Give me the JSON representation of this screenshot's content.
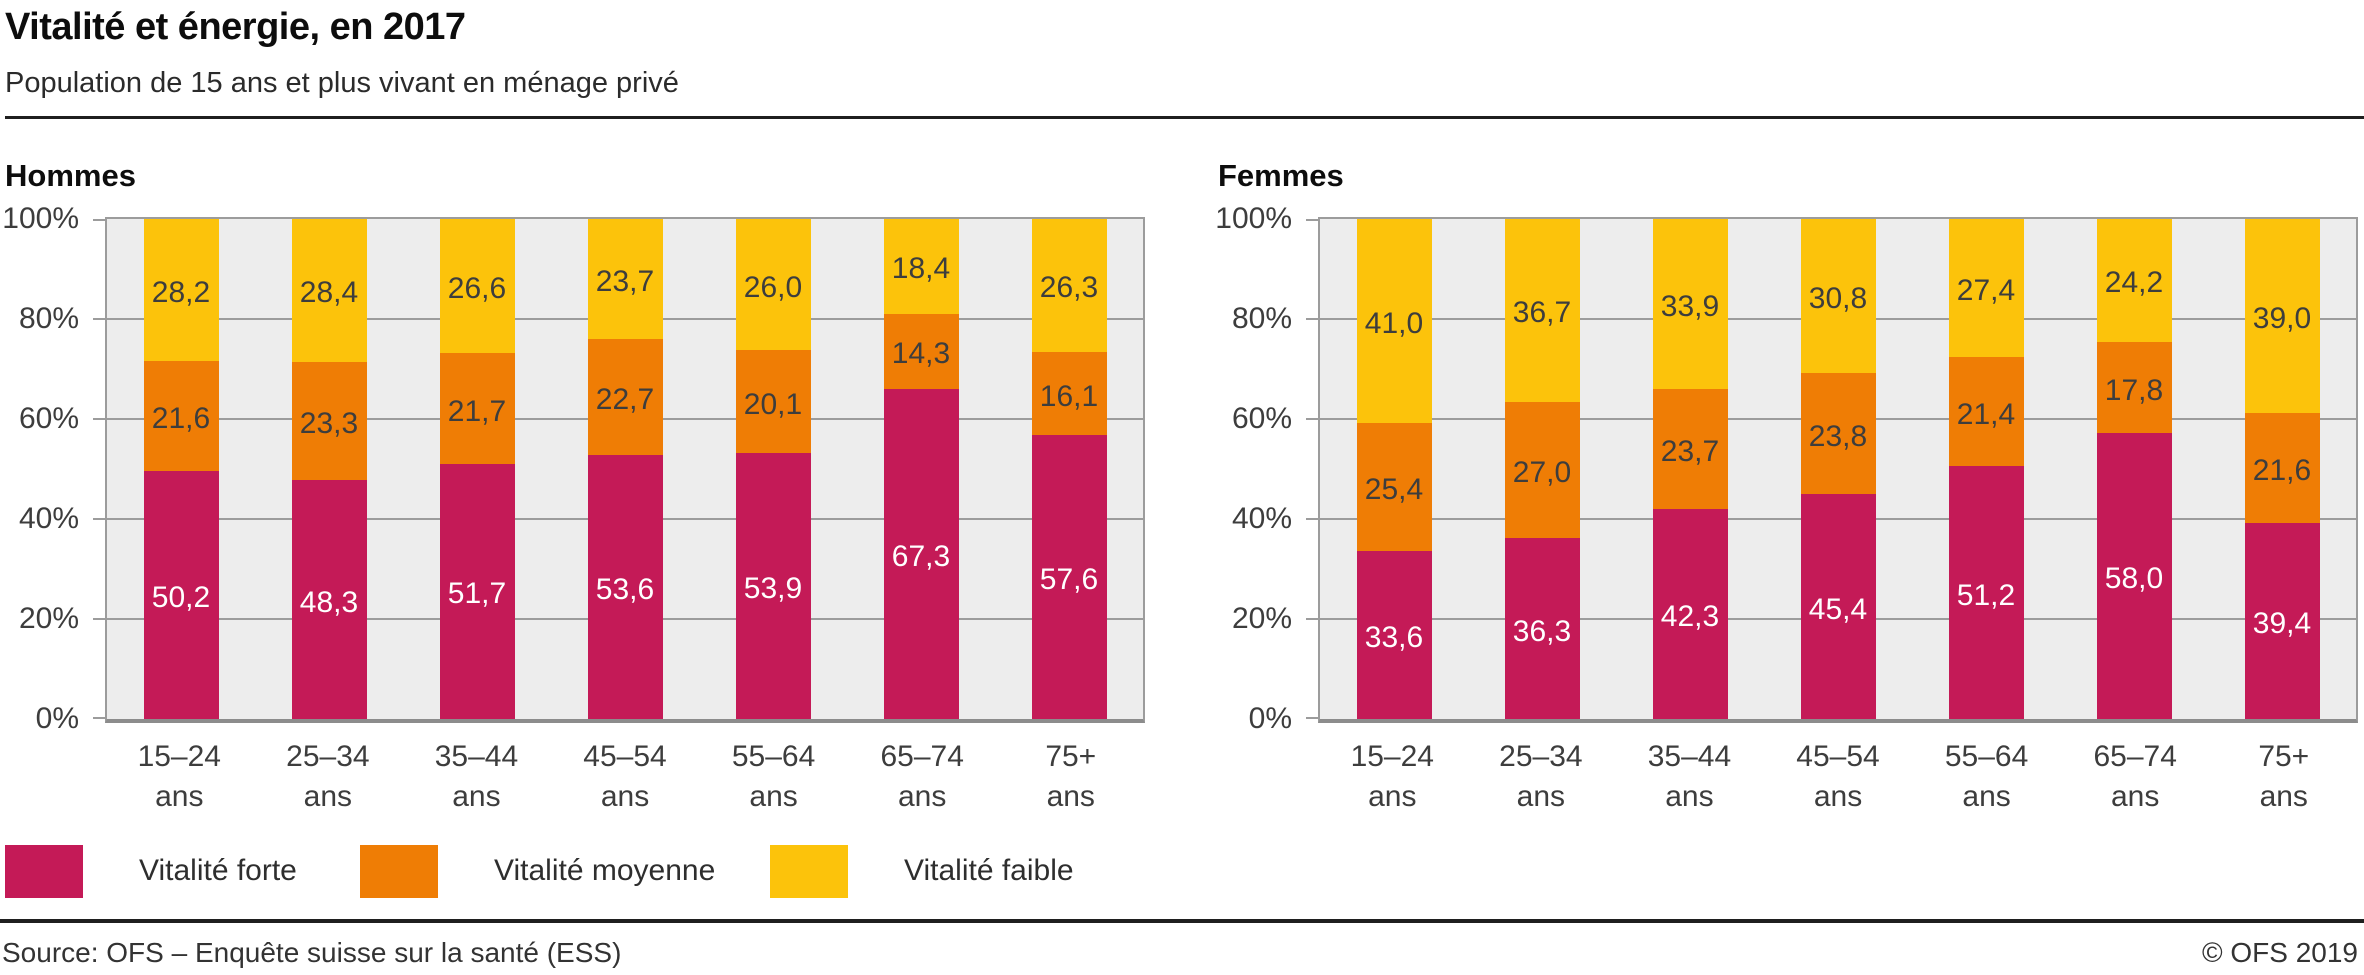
{
  "header": {
    "title": "Vitalité et énergie, en 2017",
    "subtitle": "Population de 15 ans et plus vivant en ménage privé"
  },
  "y_axis": {
    "tick_labels": [
      "100%",
      "80%",
      "60%",
      "40%",
      "20%",
      "0%"
    ]
  },
  "category_unit": "ans",
  "legend": {
    "items": [
      {
        "label": "Vitalité forte",
        "color": "#C41A57"
      },
      {
        "label": "Vitalité moyenne",
        "color": "#EF7D05"
      },
      {
        "label": "Vitalité faible",
        "color": "#FCC30B"
      }
    ]
  },
  "chart_data": [
    {
      "type": "bar",
      "stacked": true,
      "title": "Hommes",
      "ylim": [
        0,
        100
      ],
      "grid": true,
      "categories": [
        "15–24",
        "25–34",
        "35–44",
        "45–54",
        "55–64",
        "65–74",
        "75+"
      ],
      "series": [
        {
          "name": "Vitalité forte",
          "color": "#C41A57",
          "label_color": "#FFFFFF",
          "values": [
            50.2,
            48.3,
            51.7,
            53.6,
            53.9,
            67.3,
            57.6
          ]
        },
        {
          "name": "Vitalité moyenne",
          "color": "#EF7D05",
          "label_color": "#3D3D3D",
          "values": [
            21.6,
            23.3,
            21.7,
            22.7,
            20.1,
            14.3,
            16.1
          ]
        },
        {
          "name": "Vitalité faible",
          "color": "#FCC30B",
          "label_color": "#3D3D3D",
          "values": [
            28.2,
            28.4,
            26.6,
            23.7,
            26.0,
            18.4,
            26.3
          ]
        }
      ]
    },
    {
      "type": "bar",
      "stacked": true,
      "title": "Femmes",
      "ylim": [
        0,
        100
      ],
      "grid": true,
      "categories": [
        "15–24",
        "25–34",
        "35–44",
        "45–54",
        "55–64",
        "65–74",
        "75+"
      ],
      "series": [
        {
          "name": "Vitalité forte",
          "color": "#C41A57",
          "label_color": "#FFFFFF",
          "values": [
            33.6,
            36.3,
            42.3,
            45.4,
            51.2,
            58.0,
            39.4
          ]
        },
        {
          "name": "Vitalité moyenne",
          "color": "#EF7D05",
          "label_color": "#3D3D3D",
          "values": [
            25.4,
            27.0,
            23.7,
            23.8,
            21.4,
            17.8,
            21.6
          ]
        },
        {
          "name": "Vitalité faible",
          "color": "#FCC30B",
          "label_color": "#3D3D3D",
          "values": [
            41.0,
            36.7,
            33.9,
            30.8,
            27.4,
            24.2,
            39.0
          ]
        }
      ]
    }
  ],
  "footer": {
    "source": "Source: OFS – Enquête suisse sur la santé (ESS)",
    "copyright": "© OFS 2019"
  },
  "style": {
    "plot_bg": "#EDEDED",
    "grid_color": "#9C9C9C",
    "axis_color": "#8C8C8C",
    "text_color": "#3D3D3D"
  }
}
